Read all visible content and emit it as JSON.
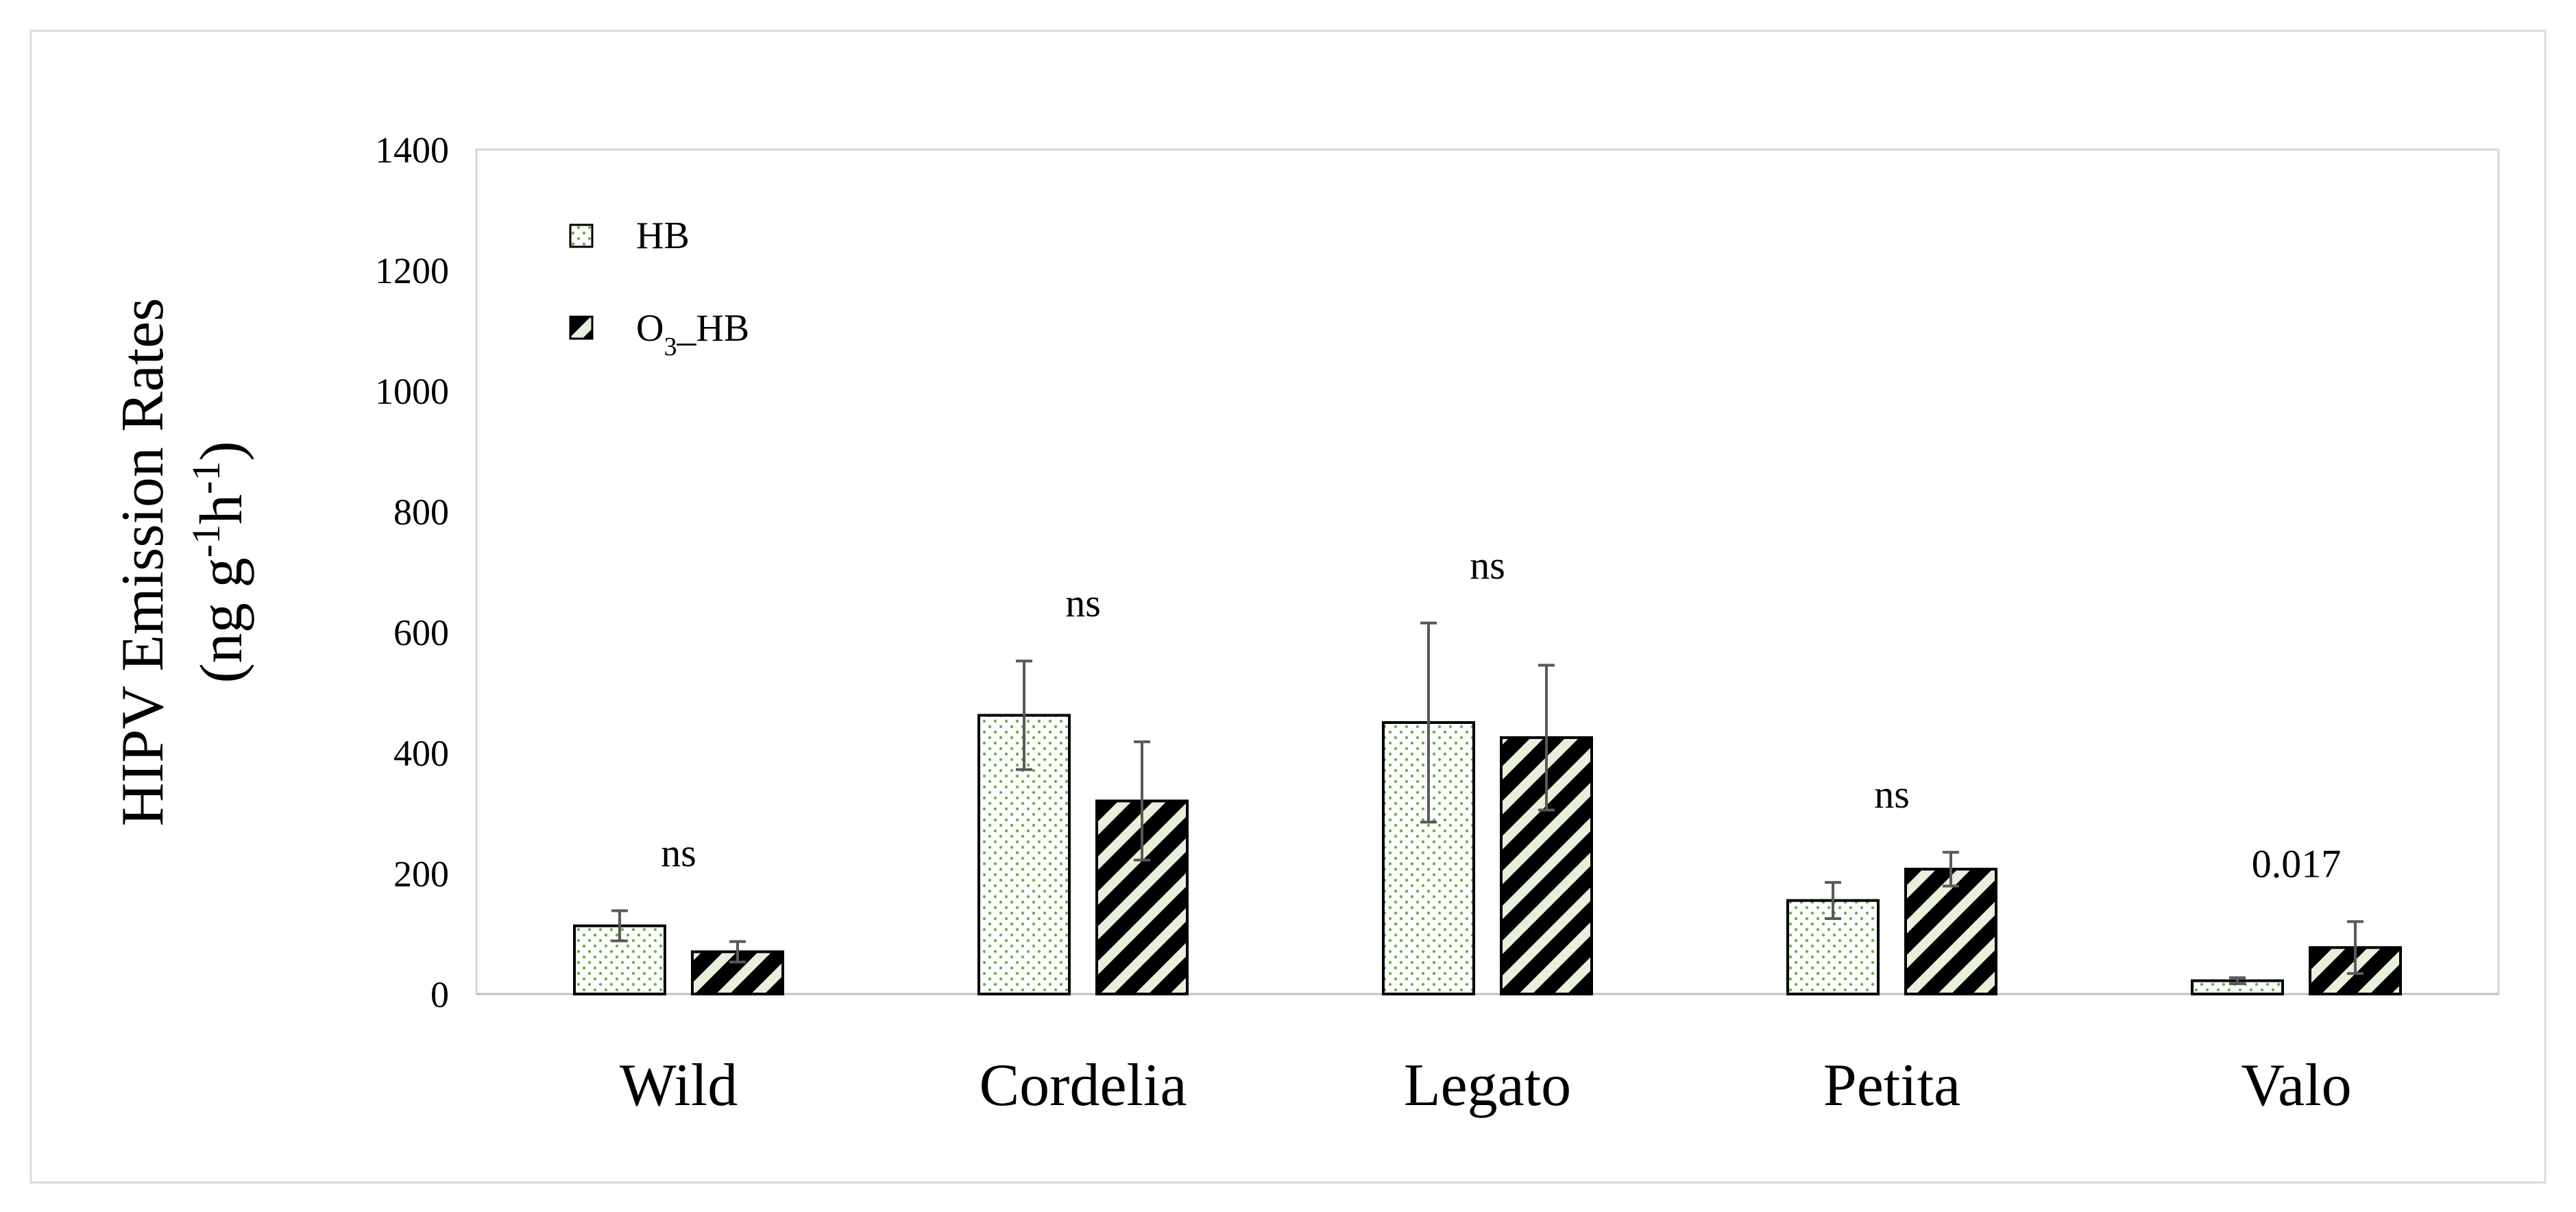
{
  "chart_data": {
    "type": "bar",
    "title": "",
    "xlabel": "",
    "ylabel_line1": "HIPV Emission Rates",
    "ylabel_line2_prefix": "(ng g",
    "ylabel_sup1": "-1",
    "ylabel_mid": "h",
    "ylabel_sup2": "-1",
    "ylabel_suffix": ")",
    "ylim": [
      0,
      1400
    ],
    "yticks": [
      0,
      200,
      400,
      600,
      800,
      1000,
      1200,
      1400
    ],
    "ytick_labels": [
      "0",
      "200",
      "400",
      "600",
      "800",
      "1000",
      "1200",
      "1400"
    ],
    "categories": [
      "Wild",
      "Cordelia",
      "Legato",
      "Petita",
      "Valo"
    ],
    "series": [
      {
        "name": "HB",
        "legend_label": "HB",
        "values": [
          113,
          462,
          450,
          155,
          22
        ],
        "errors": [
          25,
          90,
          165,
          30,
          5
        ]
      },
      {
        "name": "O3_HB",
        "legend_main": "O",
        "legend_sub": "3",
        "legend_rest": "_HB",
        "values": [
          70,
          320,
          425,
          207,
          77
        ],
        "errors": [
          17,
          98,
          120,
          28,
          43
        ]
      }
    ],
    "annotations": [
      "ns",
      "ns",
      "ns",
      "ns",
      "0.017"
    ],
    "grid": false,
    "legend_position": "top-left",
    "colors": {
      "hb_fill": "#ffffff",
      "hb_dot": "#6ab04c",
      "o3_fill": "#000000",
      "o3_stripe": "#e8f0dc",
      "bar_edge": "#000000",
      "error_bar": "#595959",
      "axis": "#bfbfbf",
      "frame": "#d9d9d9"
    }
  }
}
